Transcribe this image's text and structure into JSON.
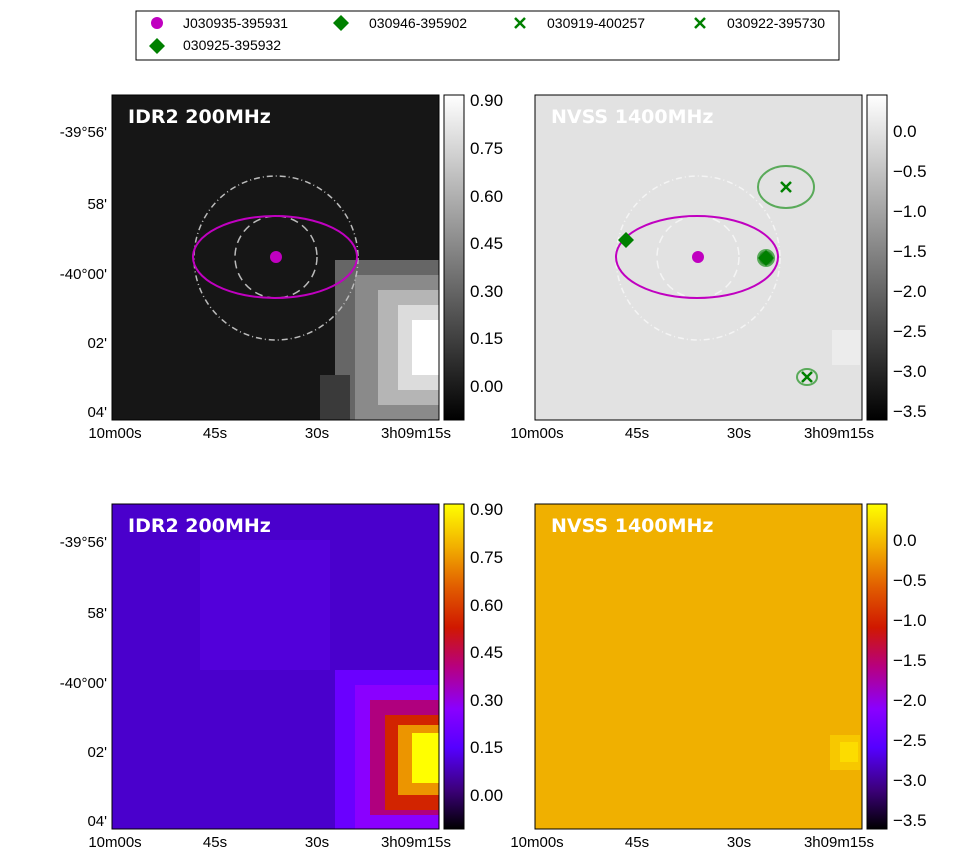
{
  "legend": {
    "placement": "top-center",
    "entries": [
      {
        "label": "J030935-395931",
        "marker": "circle",
        "color": "#c000c0"
      },
      {
        "label": "030946-395902",
        "marker": "diamond",
        "color": "#008000"
      },
      {
        "label": "030919-400257",
        "marker": "x",
        "color": "#008000"
      },
      {
        "label": "030922-395730",
        "marker": "x",
        "color": "#008000"
      },
      {
        "label": "030925-395932",
        "marker": "diamond",
        "color": "#008000"
      }
    ]
  },
  "chart_data": [
    {
      "type": "heatmap",
      "title": "IDR2 200MHz",
      "colormap": "gray",
      "xlabel": "",
      "ylabel": "",
      "x_ticks": [
        "10m00s",
        "45s",
        "30s",
        "3h09m15s"
      ],
      "y_ticks": [
        "-39°56'",
        "58'",
        "-40°00'",
        "02'",
        "04'"
      ],
      "colorbar": {
        "ticks": [
          "0.90",
          "0.75",
          "0.60",
          "0.45",
          "0.30",
          "0.15",
          "0.00"
        ],
        "range": [
          -0.1,
          0.92
        ]
      },
      "grid": false
    },
    {
      "type": "heatmap",
      "title": "NVSS 1400MHz",
      "colormap": "gray",
      "xlabel": "",
      "ylabel": "",
      "x_ticks": [
        "10m00s",
        "45s",
        "30s",
        "3h09m15s"
      ],
      "y_ticks": [],
      "colorbar": {
        "ticks": [
          "0.0",
          "−0.5",
          "−1.0",
          "−1.5",
          "−2.0",
          "−2.5",
          "−3.0",
          "−3.5"
        ],
        "range": [
          -3.62,
          0.45
        ]
      },
      "grid": false
    },
    {
      "type": "heatmap",
      "title": "IDR2 200MHz",
      "colormap": "gnuplot",
      "xlabel": "",
      "ylabel": "",
      "x_ticks": [
        "10m00s",
        "45s",
        "30s",
        "3h09m15s"
      ],
      "y_ticks": [
        "-39°56'",
        "58'",
        "-40°00'",
        "02'",
        "04'"
      ],
      "colorbar": {
        "ticks": [
          "0.90",
          "0.75",
          "0.60",
          "0.45",
          "0.30",
          "0.15",
          "0.00"
        ],
        "range": [
          -0.1,
          0.92
        ]
      },
      "grid": false
    },
    {
      "type": "heatmap",
      "title": "NVSS 1400MHz",
      "colormap": "gnuplot",
      "xlabel": "",
      "ylabel": "",
      "x_ticks": [
        "10m00s",
        "45s",
        "30s",
        "3h09m15s"
      ],
      "y_ticks": [],
      "colorbar": {
        "ticks": [
          "0.0",
          "−0.5",
          "−1.0",
          "−1.5",
          "−2.0",
          "−2.5",
          "−3.0",
          "−3.5"
        ],
        "range": [
          -3.62,
          0.45
        ]
      },
      "grid": false
    }
  ]
}
